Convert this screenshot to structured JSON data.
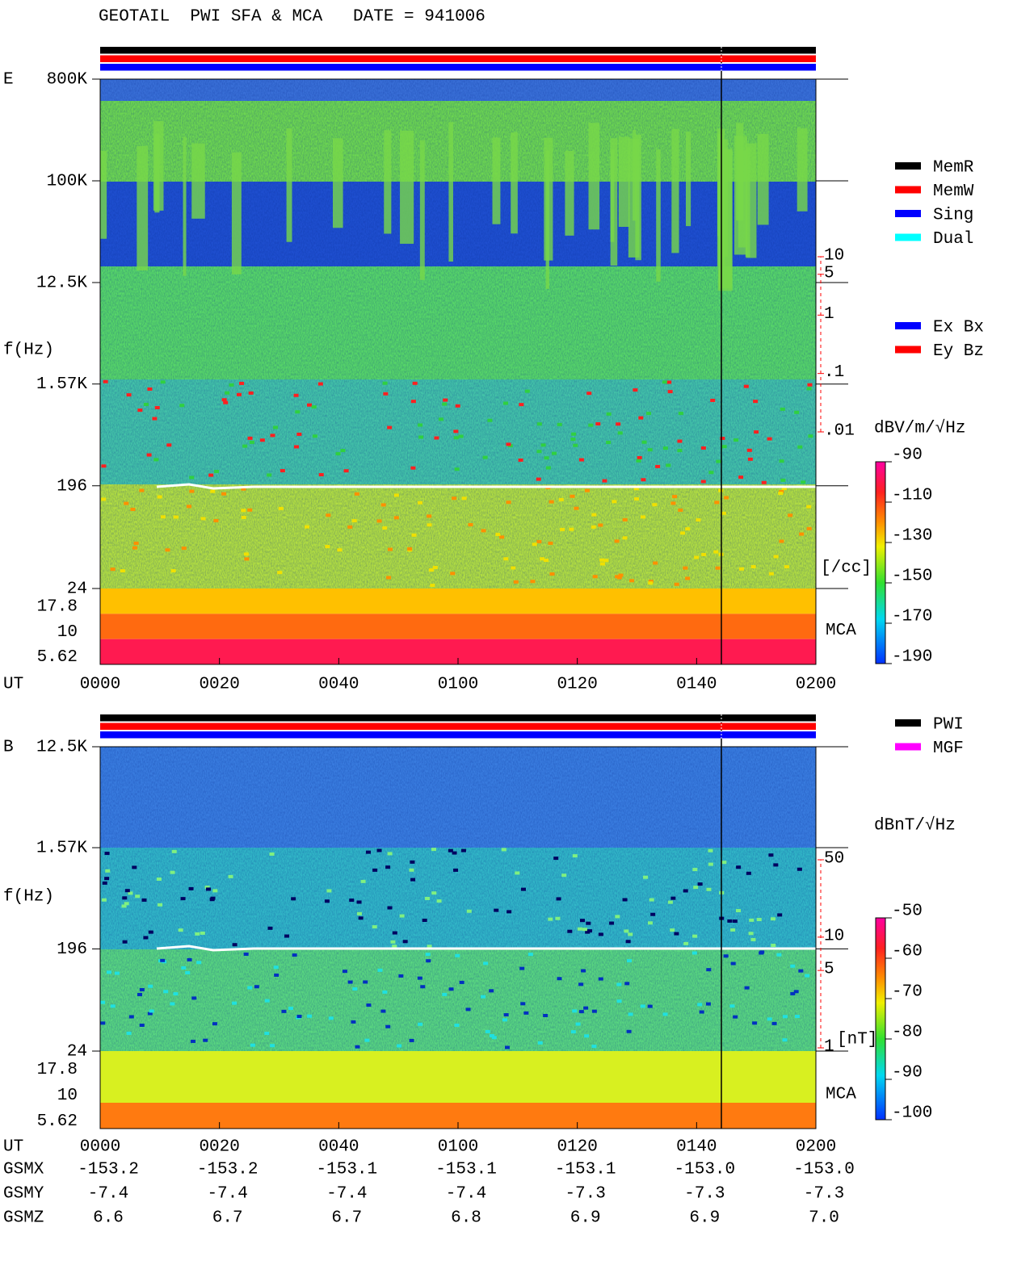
{
  "header": {
    "title": "GEOTAIL  PWI SFA & MCA   DATE = 941006"
  },
  "chart_data": [
    {
      "type": "spectrogram",
      "panel_label": "E",
      "ylabel": "f(Hz)",
      "log_y": true,
      "ylim": [
        24,
        800000
      ],
      "yticks": [
        24,
        196,
        {
          "value": 1570,
          "label": "1.57K"
        },
        {
          "value": 12500,
          "label": "12.5K"
        },
        {
          "value": 100000,
          "label": "100K"
        },
        {
          "value": 800000,
          "label": "800K"
        }
      ],
      "mca_channels": [
        "17.8",
        "10",
        "5.62"
      ],
      "mca_label": "MCA",
      "xlabel": "UT",
      "xlim": [
        0,
        120
      ],
      "xticks": [
        {
          "value": 0,
          "label": "0000"
        },
        {
          "value": 20,
          "label": "0020"
        },
        {
          "value": 40,
          "label": "0040"
        },
        {
          "value": 60,
          "label": "0100"
        },
        {
          "value": 80,
          "label": "0120"
        },
        {
          "value": 100,
          "label": "0140"
        },
        {
          "value": 120,
          "label": "0200"
        }
      ],
      "y2lim": [
        0.01,
        10
      ],
      "y2ticks": [
        10,
        5,
        1,
        {
          "value": 0.1,
          "label": ".1"
        },
        {
          "value": 0.01,
          "label": ".01"
        }
      ],
      "y2label": "[/cc]",
      "y2color": "#ff0000",
      "clabel": "dBV/m/√Hz",
      "clim": [
        -190,
        -90
      ],
      "cticks": [
        -90,
        -110,
        -130,
        -150,
        -170,
        -190
      ],
      "legend": [
        {
          "name": "MemR",
          "color": "#000000"
        },
        {
          "name": "MemW",
          "color": "#ff0000"
        },
        {
          "name": "Sing",
          "color": "#0000ff"
        },
        {
          "name": "Dual",
          "color": "#00ffff"
        }
      ],
      "channel_legend": [
        {
          "name": "Ex Bx",
          "color": "#0000ff"
        },
        {
          "name": "Ey Bz",
          "color": "#ff0000"
        }
      ]
    },
    {
      "type": "spectrogram",
      "panel_label": "B",
      "ylabel": "f(Hz)",
      "log_y": true,
      "ylim": [
        24,
        12500
      ],
      "yticks": [
        24,
        196,
        {
          "value": 1570,
          "label": "1.57K"
        },
        {
          "value": 12500,
          "label": "12.5K"
        }
      ],
      "mca_channels": [
        "17.8",
        "10",
        "5.62"
      ],
      "mca_label": "MCA",
      "xlabel": "UT",
      "xlim": [
        0,
        120
      ],
      "xticks": [
        {
          "value": 0,
          "label": "0000"
        },
        {
          "value": 20,
          "label": "0020"
        },
        {
          "value": 40,
          "label": "0040"
        },
        {
          "value": 60,
          "label": "0100"
        },
        {
          "value": 80,
          "label": "0120"
        },
        {
          "value": 100,
          "label": "0140"
        },
        {
          "value": 120,
          "label": "0200"
        }
      ],
      "y2lim": [
        1,
        50
      ],
      "y2ticks": [
        50,
        10,
        5,
        1
      ],
      "y2label": "[nT]",
      "y2color": "#ff0000",
      "clabel": "dBnT/√Hz",
      "clim": [
        -100,
        -50
      ],
      "cticks": [
        -50,
        -60,
        -70,
        -80,
        -90,
        -100
      ],
      "legend": [
        {
          "name": "PWI",
          "color": "#000000"
        },
        {
          "name": "MGF",
          "color": "#ff00ff"
        }
      ]
    }
  ],
  "orbit": {
    "rows": [
      {
        "name": "GSMX",
        "values": [
          -153.2,
          -153.2,
          -153.1,
          -153.1,
          -153.1,
          -153.0,
          -153.0
        ],
        "value_labels": [
          "-153.2",
          "-153.2",
          "-153.1",
          "-153.1",
          "-153.1",
          "-153.0",
          "-153.0"
        ]
      },
      {
        "name": "GSMY",
        "values": [
          -7.4,
          -7.4,
          -7.4,
          -7.4,
          -7.3,
          -7.3,
          -7.3
        ]
      },
      {
        "name": "GSMZ",
        "values": [
          6.6,
          6.7,
          6.7,
          6.8,
          6.9,
          6.9,
          7.0
        ],
        "value_labels": [
          "6.6",
          "6.7",
          "6.7",
          "6.8",
          "6.9",
          "6.9",
          "7.0"
        ]
      }
    ]
  }
}
